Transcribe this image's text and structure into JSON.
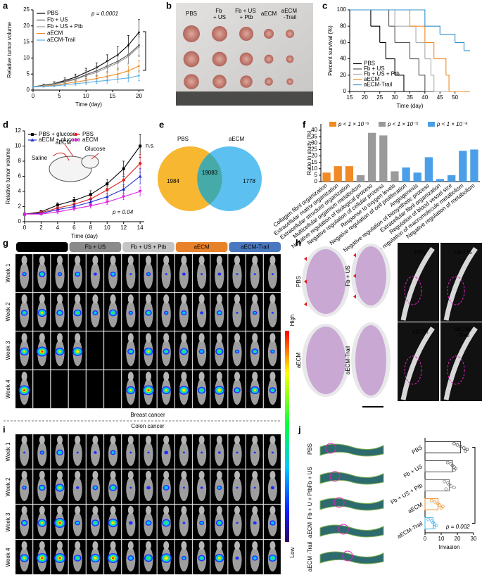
{
  "panel_labels": [
    "a",
    "b",
    "c",
    "d",
    "e",
    "f",
    "g",
    "h",
    "i",
    "j"
  ],
  "chart_data": [
    {
      "type": "line",
      "xlabel": "Time (day)",
      "ylabel": "Relative tumor volume",
      "annotation": "p = 0.0001",
      "legend": "upper left",
      "x": [
        0,
        2,
        4,
        6,
        8,
        10,
        12,
        14,
        16,
        18,
        20
      ],
      "xlim": [
        0,
        21
      ],
      "xticks": [
        0,
        5,
        10,
        15,
        20
      ],
      "ylim": [
        0,
        25
      ],
      "yticks": [
        0,
        5,
        10,
        15,
        20,
        25
      ],
      "series": [
        {
          "name": "PBS",
          "color": "#000000",
          "values": [
            1,
            1.5,
            2,
            3,
            4,
            5.5,
            7,
            9,
            11,
            14,
            18
          ],
          "errors": [
            0.2,
            0.4,
            0.6,
            0.8,
            1,
            1.3,
            1.5,
            2,
            2.5,
            3,
            4
          ]
        },
        {
          "name": "Fb + US",
          "color": "#555555",
          "values": [
            1,
            1.4,
            1.9,
            2.7,
            3.5,
            4.8,
            6,
            7.5,
            9,
            11,
            14
          ],
          "errors": [
            0.2,
            0.3,
            0.5,
            0.7,
            0.9,
            1.2,
            1.4,
            1.8,
            2.2,
            2.6,
            3.3
          ]
        },
        {
          "name": "Fb + US + Ptb",
          "color": "#9a9a9a",
          "values": [
            1,
            1.3,
            1.8,
            2.5,
            3.3,
            4.5,
            5.5,
            7,
            8.5,
            10.5,
            13.5
          ],
          "errors": [
            0.2,
            0.3,
            0.5,
            0.6,
            0.8,
            1.1,
            1.3,
            1.7,
            2,
            2.4,
            3
          ]
        },
        {
          "name": "aECM",
          "color": "#f08a24",
          "values": [
            1,
            1.2,
            1.5,
            2,
            2.5,
            3,
            3.6,
            4.3,
            5,
            6,
            7.5
          ],
          "errors": [
            0.1,
            0.2,
            0.3,
            0.4,
            0.5,
            0.7,
            0.8,
            1,
            1.2,
            1.5,
            1.8
          ]
        },
        {
          "name": "aECM-Trail",
          "color": "#5aaee6",
          "values": [
            1,
            1.1,
            1.3,
            1.6,
            2,
            2.3,
            2.7,
            3,
            3.4,
            3.8,
            4.5
          ],
          "errors": [
            0.1,
            0.2,
            0.3,
            0.4,
            0.5,
            0.6,
            0.7,
            0.8,
            1,
            1.2,
            1.6
          ]
        }
      ]
    },
    {
      "type": "step",
      "xlabel": "Time (day)",
      "ylabel": "Percent survival (%)",
      "legend": "lower left",
      "xlim": [
        15,
        55
      ],
      "xticks": [
        15,
        20,
        25,
        30,
        35,
        40,
        45,
        50
      ],
      "ylim": [
        0,
        100
      ],
      "yticks": [
        0,
        20,
        40,
        60,
        80,
        100
      ],
      "series": [
        {
          "name": "PBS",
          "color": "#000000",
          "x": [
            15,
            22,
            25,
            27,
            30,
            33
          ],
          "values": [
            100,
            80,
            60,
            40,
            20,
            0
          ]
        },
        {
          "name": "Fb + US",
          "color": "#555555",
          "x": [
            15,
            28,
            30,
            35,
            38,
            40
          ],
          "values": [
            100,
            80,
            60,
            40,
            20,
            0
          ]
        },
        {
          "name": "Fb + US + Ptb",
          "color": "#aaaaaa",
          "x": [
            15,
            30,
            37,
            40,
            42,
            43
          ],
          "values": [
            100,
            80,
            60,
            40,
            20,
            0
          ]
        },
        {
          "name": "aECM",
          "color": "#f08a24",
          "x": [
            15,
            35,
            40,
            43,
            47,
            48
          ],
          "values": [
            100,
            80,
            60,
            40,
            20,
            0
          ]
        },
        {
          "name": "aECM-Trail",
          "color": "#2f8fc8",
          "x": [
            15,
            40,
            45,
            50,
            53
          ],
          "values": [
            100,
            80,
            70,
            60,
            50
          ]
        }
      ]
    },
    {
      "type": "line",
      "xlabel": "Time (day)",
      "ylabel": "Relative tumor volume",
      "annotation": "p = 0.04",
      "note": "n.s.",
      "legend": "upper left",
      "legend_columns": 2,
      "inset_labels": [
        "aECM",
        "Glucose",
        "Saline"
      ],
      "x": [
        0,
        2,
        4,
        6,
        8,
        10,
        12,
        14
      ],
      "xlim": [
        0,
        14.5
      ],
      "xticks": [
        0,
        2,
        4,
        6,
        8,
        10,
        12,
        14
      ],
      "ylim": [
        0,
        12
      ],
      "yticks": [
        0,
        2,
        4,
        6,
        8,
        10,
        12
      ],
      "series": [
        {
          "name": "PBS + glucose",
          "color": "#000000",
          "marker": "square",
          "values": [
            1,
            1.3,
            2.2,
            2.8,
            3.6,
            5,
            7,
            10
          ],
          "errors": [
            0.1,
            0.2,
            0.3,
            0.4,
            0.5,
            0.6,
            1,
            1.5
          ]
        },
        {
          "name": "PBS",
          "color": "#e02020",
          "marker": "circle",
          "values": [
            1,
            1.2,
            1.8,
            2.3,
            3,
            4.2,
            5.5,
            7.7
          ],
          "errors": [
            0.1,
            0.2,
            0.3,
            0.3,
            0.4,
            0.5,
            0.8,
            1.2
          ]
        },
        {
          "name": "aECM + glucose",
          "color": "#2030d0",
          "marker": "triangle",
          "values": [
            1,
            1.1,
            1.6,
            2,
            2.6,
            3.3,
            4.3,
            6
          ],
          "errors": [
            0.1,
            0.1,
            0.2,
            0.3,
            0.3,
            0.4,
            0.6,
            1
          ]
        },
        {
          "name": "aECM",
          "color": "#e020e0",
          "marker": "triangle-down",
          "values": [
            1,
            1,
            1.3,
            1.7,
            2.1,
            2.6,
            3.3,
            4
          ],
          "errors": [
            0.1,
            0.1,
            0.2,
            0.2,
            0.3,
            0.3,
            0.4,
            0.6
          ]
        }
      ]
    },
    {
      "type": "venn",
      "sets": [
        "PBS",
        "aECM"
      ],
      "colors": [
        "#f7b731",
        "#3fb6ee"
      ],
      "values": [
        1984,
        19083,
        1778
      ]
    },
    {
      "type": "bar",
      "ylabel": "Ratio in study (%)",
      "ylim": [
        0,
        45
      ],
      "yticks": [
        0,
        5,
        10,
        15,
        20,
        25,
        30,
        35,
        40
      ],
      "legend": [
        {
          "label": "p < 1 × 10⁻⁶",
          "color": "#f08a24"
        },
        {
          "label": "p < 1 × 10⁻⁵",
          "color": "#9a9a9a"
        },
        {
          "label": "p < 1 × 10⁻⁴",
          "color": "#4a9fe8"
        }
      ],
      "categories": [
        "Collagen fibril organization",
        "Extracellular matrix organization",
        "Extracellular structure organization",
        "Multicellular organism metabolism",
        "Negative regulation of biological process",
        "Negative regulation of cellular process",
        "Response to oxygen levels",
        "Negative regulation of cell proliferation",
        "Angiogenesis",
        "Negative regulation of biosynthetic process",
        "Extracellular fibril organization",
        "Regulation of blood vessel size",
        "Negative regulation of macromolecule metabolism",
        "Negative regulation of metabolism"
      ],
      "values": [
        7,
        12,
        12,
        5,
        38,
        36,
        8,
        11,
        7,
        19,
        2,
        5,
        24,
        25
      ],
      "colors": [
        "#f08a24",
        "#f08a24",
        "#f08a24",
        "#9a9a9a",
        "#9a9a9a",
        "#9a9a9a",
        "#9a9a9a",
        "#4a9fe8",
        "#4a9fe8",
        "#4a9fe8",
        "#4a9fe8",
        "#4a9fe8",
        "#4a9fe8",
        "#4a9fe8"
      ]
    },
    {
      "type": "barh",
      "xlabel": "Invasion",
      "annotation": "p = 0.002",
      "xlim": [
        0,
        30
      ],
      "xticks": [
        0,
        10,
        20,
        30
      ],
      "categories": [
        "PBS",
        "Fb + US",
        "Fb + US + Ptb",
        "aECM",
        "aECM-Trail"
      ],
      "values": [
        22,
        17,
        15,
        8,
        5
      ],
      "colors": [
        "#333333",
        "#555555",
        "#777777",
        "#f08a24",
        "#3fb6ee"
      ],
      "points": [
        [
          18,
          20,
          22,
          24,
          26,
          25
        ],
        [
          14,
          16,
          17,
          18,
          19,
          18
        ],
        [
          12,
          14,
          15,
          16,
          18,
          13
        ],
        [
          4,
          6,
          8,
          9,
          11,
          10
        ],
        [
          2,
          4,
          5,
          6,
          7,
          6
        ]
      ]
    }
  ],
  "photos": {
    "b": {
      "labels": [
        "PBS",
        "Fb + US",
        "Fb + US + Ptb",
        "aECM",
        "aECM -Trail"
      ]
    },
    "g": {
      "groups": [
        "PBS",
        "Fb + US",
        "Fb + US + Ptb",
        "aECM",
        "aECM-Trail"
      ],
      "weeks": [
        "Week 1",
        "Week 2",
        "Week 3",
        "Week 4"
      ],
      "caption": "Breast cancer"
    },
    "colorbar": {
      "high": "High",
      "low": "Low"
    },
    "i": {
      "weeks": [
        "Week 1",
        "Week 2",
        "Week 3",
        "Week 4"
      ],
      "caption": "Colon cancer"
    },
    "h": {
      "histology": [
        "PBS",
        "Fb + US",
        "aECM",
        "aECM-Trail"
      ],
      "ct": [
        "PBS",
        "Fb+US",
        "aECM",
        "aECM -Trail"
      ]
    },
    "j": {
      "labels": [
        "PBS",
        "Fb + US",
        "Fb + U + Ptb",
        "aECM",
        "aECM -Trail"
      ]
    }
  }
}
